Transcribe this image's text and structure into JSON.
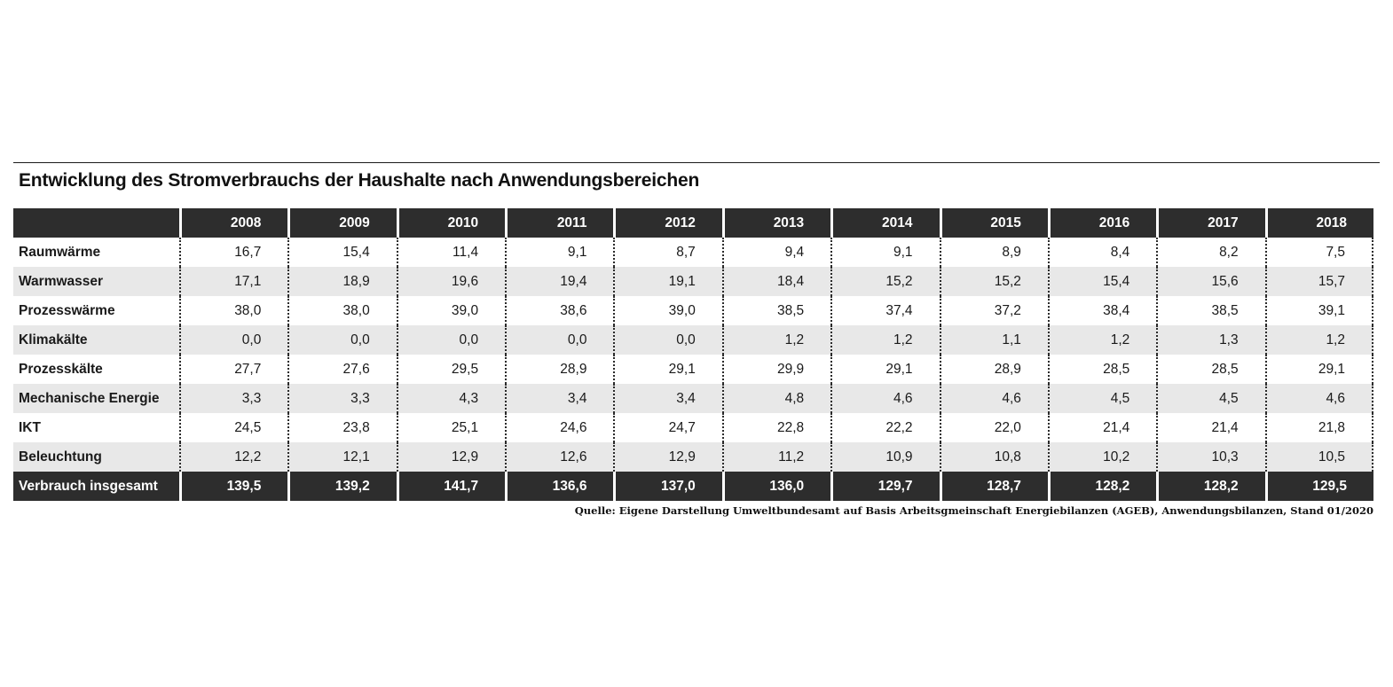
{
  "colors": {
    "header_bg": "#2d2d2d",
    "total_row_bg": "#2d2d2d",
    "stripe_bg": "#e8e8e8",
    "text": "#1a1a1a",
    "header_text": "#ffffff"
  },
  "chart_data": {
    "type": "table",
    "title": "Entwicklung des Stromverbrauchs der Haushalte nach Anwendungsbereichen",
    "columns": [
      "2008",
      "2009",
      "2010",
      "2011",
      "2012",
      "2013",
      "2014",
      "2015",
      "2016",
      "2017",
      "2018"
    ],
    "rows": [
      {
        "label": "Raumwärme",
        "values": [
          "16,7",
          "15,4",
          "11,4",
          "9,1",
          "8,7",
          "9,4",
          "9,1",
          "8,9",
          "8,4",
          "8,2",
          "7,5"
        ]
      },
      {
        "label": "Warmwasser",
        "values": [
          "17,1",
          "18,9",
          "19,6",
          "19,4",
          "19,1",
          "18,4",
          "15,2",
          "15,2",
          "15,4",
          "15,6",
          "15,7"
        ]
      },
      {
        "label": "Prozesswärme",
        "values": [
          "38,0",
          "38,0",
          "39,0",
          "38,6",
          "39,0",
          "38,5",
          "37,4",
          "37,2",
          "38,4",
          "38,5",
          "39,1"
        ]
      },
      {
        "label": "Klimakälte",
        "values": [
          "0,0",
          "0,0",
          "0,0",
          "0,0",
          "0,0",
          "1,2",
          "1,2",
          "1,1",
          "1,2",
          "1,3",
          "1,2"
        ]
      },
      {
        "label": "Prozesskälte",
        "values": [
          "27,7",
          "27,6",
          "29,5",
          "28,9",
          "29,1",
          "29,9",
          "29,1",
          "28,9",
          "28,5",
          "28,5",
          "29,1"
        ]
      },
      {
        "label": "Mechanische Energie",
        "values": [
          "3,3",
          "3,3",
          "4,3",
          "3,4",
          "3,4",
          "4,8",
          "4,6",
          "4,6",
          "4,5",
          "4,5",
          "4,6"
        ]
      },
      {
        "label": "IKT",
        "values": [
          "24,5",
          "23,8",
          "25,1",
          "24,6",
          "24,7",
          "22,8",
          "22,2",
          "22,0",
          "21,4",
          "21,4",
          "21,8"
        ]
      },
      {
        "label": "Beleuchtung",
        "values": [
          "12,2",
          "12,1",
          "12,9",
          "12,6",
          "12,9",
          "11,2",
          "10,9",
          "10,8",
          "10,2",
          "10,3",
          "10,5"
        ]
      }
    ],
    "total_row": {
      "label": "Verbrauch insgesamt",
      "values": [
        "139,5",
        "139,2",
        "141,7",
        "136,6",
        "137,0",
        "136,0",
        "129,7",
        "128,7",
        "128,2",
        "128,2",
        "129,5"
      ]
    },
    "source": "Quelle: Eigene Darstellung Umweltbundesamt auf Basis Arbeitsgmeinschaft Energiebilanzen (AGEB), Anwendungsbilanzen, Stand 01/2020",
    "legend_position": "none",
    "grid": "column-separators-dotted"
  }
}
